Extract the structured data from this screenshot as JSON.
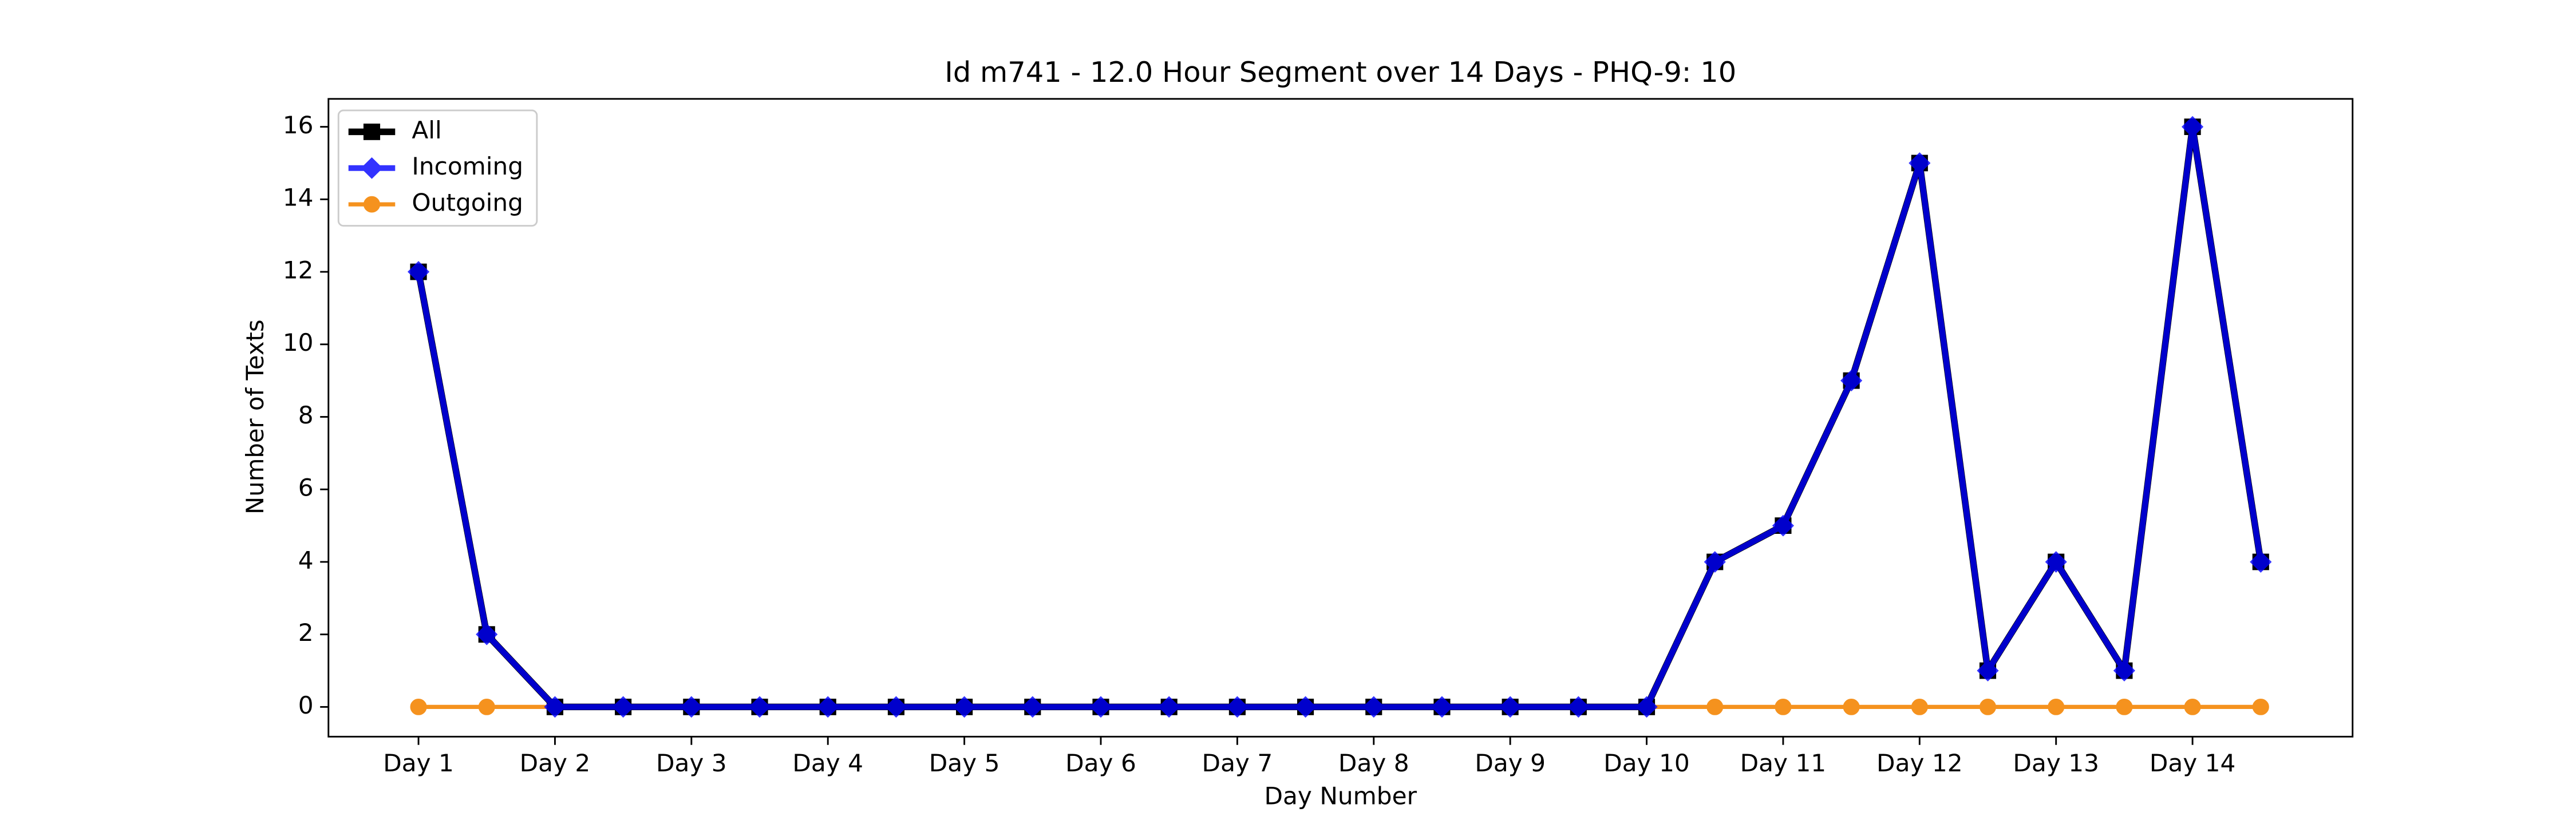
{
  "chart_data": {
    "type": "line",
    "title": "Id m741 - 12.0 Hour Segment over 14 Days - PHQ-9: 10",
    "xlabel": "Day Number",
    "ylabel": "Number of Texts",
    "categories": [
      "Day 1",
      null,
      "Day 2",
      null,
      "Day 3",
      null,
      "Day 4",
      null,
      "Day 5",
      null,
      "Day 6",
      null,
      "Day 7",
      null,
      "Day 8",
      null,
      "Day 9",
      null,
      "Day 10",
      null,
      "Day 11",
      null,
      "Day 12",
      null,
      "Day 13",
      null,
      "Day 14",
      null
    ],
    "series": [
      {
        "name": "All",
        "color": "#000000",
        "marker": "square",
        "values": [
          12,
          2,
          0,
          0,
          0,
          0,
          0,
          0,
          0,
          0,
          0,
          0,
          0,
          0,
          0,
          0,
          0,
          0,
          0,
          4,
          5,
          9,
          15,
          1,
          4,
          1,
          16,
          4
        ]
      },
      {
        "name": "Incoming",
        "color": "#0000ff",
        "marker": "diamond",
        "values": [
          12,
          2,
          0,
          0,
          0,
          0,
          0,
          0,
          0,
          0,
          0,
          0,
          0,
          0,
          0,
          0,
          0,
          0,
          0,
          4,
          5,
          9,
          15,
          1,
          4,
          1,
          16,
          4
        ]
      },
      {
        "name": "Outgoing",
        "color": "#f5921e",
        "marker": "circle",
        "values": [
          0,
          0,
          0,
          0,
          0,
          0,
          0,
          0,
          0,
          0,
          0,
          0,
          0,
          0,
          0,
          0,
          0,
          0,
          0,
          0,
          0,
          0,
          0,
          0,
          0,
          0,
          0,
          0
        ]
      }
    ],
    "ylim": [
      -0.82,
      16.77
    ],
    "yticks": [
      0,
      2,
      4,
      6,
      8,
      10,
      12,
      14,
      16
    ],
    "legend": "upper left",
    "grid": false
  }
}
